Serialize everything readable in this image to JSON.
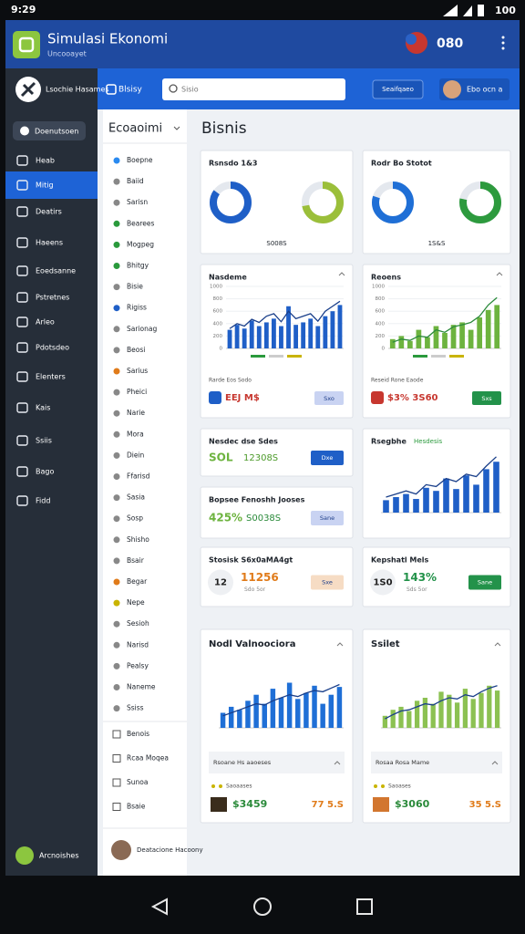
{
  "status_bar": {
    "time": "9:29",
    "battery": "100"
  },
  "header": {
    "title": "Simulasi Ekonomi",
    "subtitle": "Uncooayet",
    "badge": "080"
  },
  "sidebar": {
    "profile": "Lsochie Hasames",
    "button": "Doenutsoen",
    "items": [
      "Heab",
      "Mitig",
      "Deatirs",
      "Haeens",
      "Eoedsanne",
      "Pstretnes",
      "Arleo",
      "Pdotsdeo",
      "Elenters",
      "Kais",
      "Ssiis",
      "Bago",
      "Fidd"
    ],
    "active": 1,
    "footer": "Arcnoishes"
  },
  "topbar": {
    "brand": "Blsisy",
    "search": "Sisio",
    "button": "Seaifqaeo",
    "user": "Ebo ocn a"
  },
  "subnav": {
    "title": "Ecoaoimi",
    "items": [
      "Boepne",
      "Baiid",
      "Sarisn",
      "Bearees",
      "Mogpeg",
      "Bhitgy",
      "Bisie",
      "Rigiss",
      "Sarionag",
      "Beosi",
      "Sarius",
      "Pheici",
      "Narie",
      "Mora",
      "Diein",
      "Ffarisd",
      "Sasia",
      "Sosp",
      "Shisho",
      "Bsair",
      "Begar",
      "Nepe",
      "Sesioh",
      "Narisd",
      "Pealsy",
      "Naneme",
      "Ssiss"
    ],
    "extra_items": [
      "Benois",
      "Rcaa Moqea",
      "Sunoa",
      "Bsaie"
    ],
    "footer": "Deatacione Hacoony"
  },
  "main": {
    "title": "Bisnis",
    "cards": [
      {
        "title": "Rsnsdo 1&3",
        "donuts": [
          85,
          72
        ],
        "colors": [
          "#1f5fc7",
          "#9bbf3a"
        ],
        "footer": "S008S"
      },
      {
        "title": "Rodr Bo Stotot",
        "donuts": [
          80,
          78
        ],
        "colors": [
          "#1f6fd6",
          "#2d9a3e"
        ],
        "footer": "1S&S"
      },
      {
        "title": "Nasdeme",
        "ylim": [
          0,
          1000
        ],
        "yticks": [
          0,
          200,
          400,
          600,
          800,
          1000
        ],
        "values": [
          300,
          380,
          320,
          450,
          360,
          420,
          480,
          360,
          680,
          380,
          420,
          480,
          360,
          520,
          600,
          700
        ],
        "line": [
          320,
          400,
          360,
          470,
          420,
          520,
          560,
          430,
          600,
          480,
          520,
          560,
          440,
          600,
          680,
          760
        ],
        "color": "#1f5fc7",
        "caption": "Rarde Eos Sodo",
        "stat": "EEJ M$",
        "button": "Sxo",
        "button_color": "#c9d3f2"
      },
      {
        "title": "Reoens",
        "ylim": [
          0,
          1000
        ],
        "yticks": [
          0,
          200,
          400,
          600,
          800,
          1000
        ],
        "values": [
          150,
          200,
          120,
          300,
          180,
          360,
          250,
          380,
          420,
          300,
          500,
          620,
          700
        ],
        "line": [
          100,
          150,
          130,
          200,
          180,
          300,
          260,
          350,
          380,
          420,
          520,
          700,
          820
        ],
        "color": "#6db33f",
        "caption": "Reseid Rone Eaode",
        "stat": "$3% 3S60",
        "button": "Sxs",
        "button_color": "#23924a"
      },
      {
        "title": "Nesdec dse Sdes",
        "stat_a": "SOL",
        "stat_b": "12308S",
        "color": "#4c9a2a",
        "button": "Dxe",
        "button_color": "#1f5fc7"
      },
      {
        "title": "Rsegbhe",
        "tag": "Hesdesis",
        "ylim": [
          0,
          100
        ],
        "values": [
          20,
          25,
          30,
          22,
          40,
          35,
          55,
          38,
          60,
          45,
          70,
          82
        ],
        "line": [
          25,
          30,
          35,
          30,
          45,
          42,
          55,
          50,
          62,
          58,
          75,
          90
        ],
        "color": "#1f5fc7"
      },
      {
        "title": "Bopsee Fenoshh Jooses",
        "stat_a": "425%",
        "stat_b": "S0038S",
        "color": "#2a8a3a",
        "button": "Sane",
        "button_color": "#c9d3f2"
      },
      {
        "title": "Stosisk S6x0aMA4gt",
        "stat_a": "12",
        "stat_b": "11256",
        "sub": "Sdo 5or",
        "color": "#e07b1a",
        "button": "Sxe",
        "button_color": "#f6dcc4"
      },
      {
        "title": "Kepshatl Mels",
        "stat_a": "1S0",
        "stat_b": "143%",
        "sub": "Sds 5or",
        "color": "#23924a",
        "button": "Sane",
        "button_color": "#23924a"
      },
      {
        "title": "Nodl Valnoociora",
        "ylim": [
          0,
          100
        ],
        "values": [
          25,
          35,
          30,
          45,
          55,
          40,
          65,
          50,
          75,
          48,
          58,
          70,
          40,
          55,
          68
        ],
        "line": [
          20,
          25,
          30,
          35,
          40,
          38,
          45,
          50,
          55,
          52,
          58,
          62,
          60,
          66,
          72
        ],
        "color": "#1f6fd6",
        "caption": "Rsoane Hs aaoeses",
        "legend": "Saoaases",
        "stat_a": "$3459",
        "stat_b": "77 5.S"
      },
      {
        "title": "Ssilet",
        "ylim": [
          0,
          100
        ],
        "values": [
          20,
          30,
          35,
          28,
          45,
          50,
          40,
          60,
          55,
          42,
          65,
          48,
          58,
          70,
          62
        ],
        "line": [
          15,
          22,
          28,
          30,
          35,
          40,
          38,
          45,
          50,
          48,
          55,
          52,
          60,
          66,
          70
        ],
        "color": "#8cc152",
        "caption": "Rosaa Rosa Mame",
        "legend": "Saoases",
        "stat_a": "$3060",
        "stat_b": "35 5.S"
      }
    ]
  }
}
